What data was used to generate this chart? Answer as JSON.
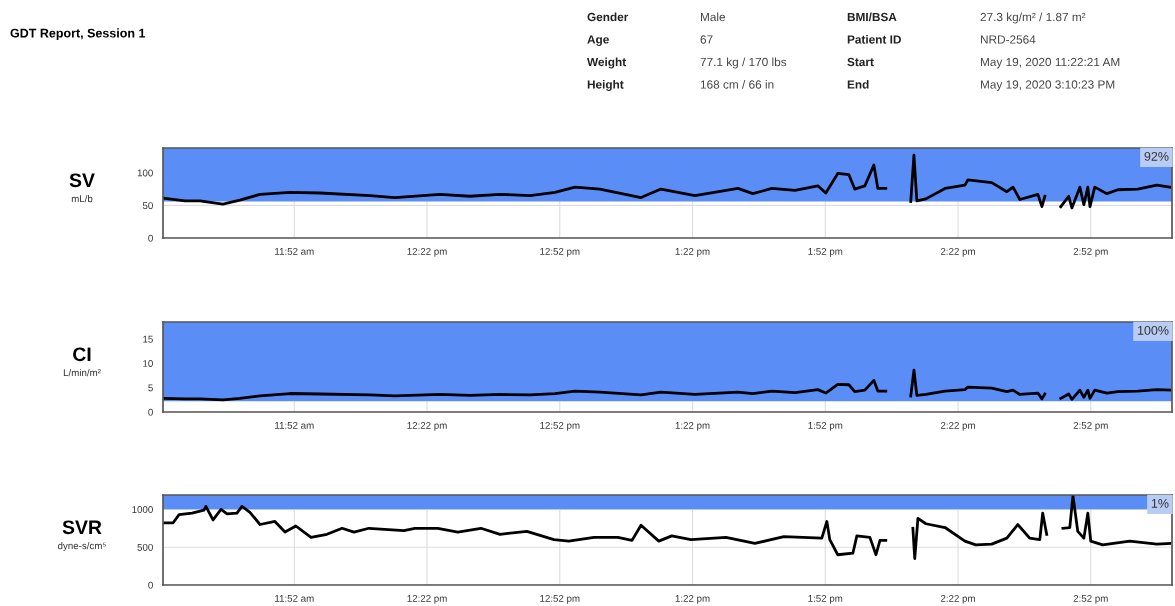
{
  "chart_data": [
    {
      "type": "other",
      "title": "GDT Report, Session 1",
      "annotations": [
        "Gender",
        "Male",
        "BMI/BSA",
        "27.3 kg/m² / 1.87 m²",
        "Age",
        "67",
        "Patient ID",
        "NRD-2564",
        "Weight",
        "77.1 kg / 170 lbs",
        "Start",
        "May 19, 2020 11:22:21 AM",
        "Height",
        "168 cm / 66 in",
        "End",
        "May 19, 2020 3:10:23 PM"
      ]
    },
    {
      "type": "line",
      "ylabel": "SV",
      "annotations": [
        "mL/b"
      ],
      "xlim": [
        11.3725,
        15.173
      ],
      "ylim": [
        0,
        138
      ],
      "yticks": [
        0,
        50,
        100
      ],
      "grid": true,
      "legend": false,
      "xticks": [
        {
          "value": 11.867,
          "label": "11:52 am"
        },
        {
          "value": 12.367,
          "label": "12:22 pm"
        },
        {
          "value": 12.867,
          "label": "12:52 pm"
        },
        {
          "value": 13.367,
          "label": "1:22 pm"
        },
        {
          "value": 13.867,
          "label": "1:52 pm"
        },
        {
          "value": 14.367,
          "label": "2:22 pm"
        },
        {
          "value": 14.867,
          "label": "2:52 pm"
        }
      ],
      "bands": [
        {
          "axis": "y",
          "from": 56,
          "to": 138,
          "label": "92%",
          "color": "#5a8ef6"
        }
      ],
      "series": [
        {
          "color": "#000000",
          "x": [
            11.373,
            11.455,
            11.512,
            11.598,
            11.662,
            11.738,
            11.851,
            11.964,
            12.152,
            12.246,
            12.416,
            12.529,
            12.642,
            12.755,
            12.849,
            12.924,
            13.018,
            13.173,
            13.248,
            13.376,
            13.538,
            13.594,
            13.666,
            13.753,
            13.839,
            13.869,
            13.914,
            13.956,
            13.978,
            14.016,
            14.05,
            14.065,
            14.095,
            14.14,
            14.189,
            14.201,
            14.212,
            14.246,
            14.318,
            14.393,
            14.404,
            14.494,
            14.551,
            14.574,
            14.6,
            14.668,
            14.683,
            14.694,
            14.725,
            14.754,
            14.784,
            14.796,
            14.826,
            14.841,
            14.856,
            14.864,
            14.882,
            14.928,
            14.969,
            15.044,
            15.116,
            15.165
          ],
          "values": [
            61,
            57,
            57,
            52,
            58,
            67,
            70,
            69,
            65,
            62,
            67,
            64,
            67,
            65,
            70,
            78,
            75,
            62,
            75,
            65,
            76,
            68,
            76,
            73,
            80,
            69,
            99,
            97,
            75,
            80,
            112,
            76,
            76,
            null,
            56,
            127,
            57,
            60,
            76,
            81,
            89,
            85,
            71,
            78,
            59,
            67,
            48,
            64,
            null,
            48,
            64,
            46,
            78,
            51,
            78,
            48,
            78,
            68,
            74,
            75,
            81,
            78
          ]
        }
      ]
    },
    {
      "type": "line",
      "ylabel": "CI",
      "annotations": [
        "L/min/m²"
      ],
      "xlim": [
        11.3725,
        15.173
      ],
      "ylim": [
        0,
        18.5
      ],
      "yticks": [
        0,
        5,
        10,
        15
      ],
      "grid": true,
      "legend": false,
      "xticks": [
        {
          "value": 11.867,
          "label": "11:52 am"
        },
        {
          "value": 12.367,
          "label": "12:22 pm"
        },
        {
          "value": 12.867,
          "label": "12:52 pm"
        },
        {
          "value": 13.367,
          "label": "1:22 pm"
        },
        {
          "value": 13.867,
          "label": "1:52 pm"
        },
        {
          "value": 14.367,
          "label": "2:22 pm"
        },
        {
          "value": 14.867,
          "label": "2:52 pm"
        }
      ],
      "bands": [
        {
          "axis": "y",
          "from": 2.2,
          "to": 18.5,
          "label": "100%",
          "color": "#5a8ef6"
        }
      ],
      "series": [
        {
          "color": "#000000",
          "x": [
            11.373,
            11.455,
            11.512,
            11.598,
            11.662,
            11.738,
            11.851,
            11.964,
            12.152,
            12.246,
            12.416,
            12.529,
            12.642,
            12.755,
            12.849,
            12.924,
            13.018,
            13.173,
            13.248,
            13.376,
            13.538,
            13.594,
            13.666,
            13.753,
            13.839,
            13.869,
            13.914,
            13.956,
            13.978,
            14.016,
            14.05,
            14.065,
            14.095,
            14.14,
            14.189,
            14.201,
            14.212,
            14.246,
            14.318,
            14.393,
            14.404,
            14.494,
            14.551,
            14.574,
            14.6,
            14.668,
            14.683,
            14.694,
            14.725,
            14.754,
            14.784,
            14.796,
            14.826,
            14.841,
            14.856,
            14.864,
            14.882,
            14.928,
            14.969,
            15.044,
            15.116,
            15.165
          ],
          "values": [
            2.8,
            2.7,
            2.7,
            2.5,
            2.8,
            3.3,
            3.8,
            3.7,
            3.5,
            3.3,
            3.6,
            3.4,
            3.6,
            3.5,
            3.8,
            4.3,
            4.1,
            3.5,
            4.1,
            3.6,
            4.1,
            3.8,
            4.3,
            4.0,
            4.6,
            3.9,
            5.7,
            5.6,
            4.2,
            4.5,
            6.5,
            4.3,
            4.3,
            null,
            3.3,
            8.6,
            3.4,
            3.6,
            4.3,
            4.6,
            5.1,
            4.9,
            4.2,
            4.5,
            3.6,
            3.9,
            2.7,
            3.7,
            null,
            2.8,
            3.7,
            2.6,
            4.5,
            3.0,
            4.5,
            2.8,
            4.5,
            3.9,
            4.2,
            4.3,
            4.6,
            4.5
          ]
        }
      ]
    },
    {
      "type": "line",
      "ylabel": "SVR",
      "annotations": [
        "dyne-s/cm⁵"
      ],
      "xlim": [
        11.3725,
        15.173
      ],
      "ylim": [
        0,
        1190
      ],
      "yticks": [
        0,
        500,
        1000
      ],
      "grid": true,
      "legend": false,
      "xticks": [
        {
          "value": 11.867,
          "label": "11:52 am"
        },
        {
          "value": 12.367,
          "label": "12:22 pm"
        },
        {
          "value": 12.867,
          "label": "12:52 pm"
        },
        {
          "value": 13.367,
          "label": "1:22 pm"
        },
        {
          "value": 13.867,
          "label": "1:52 pm"
        },
        {
          "value": 14.367,
          "label": "2:22 pm"
        },
        {
          "value": 14.867,
          "label": "2:52 pm"
        }
      ],
      "bands": [
        {
          "axis": "y",
          "from": 1000,
          "to": 1190,
          "label": "1%",
          "color": "#5a8ef6"
        }
      ],
      "series": [
        {
          "color": "#000000",
          "x": [
            11.373,
            11.41,
            11.433,
            11.482,
            11.527,
            11.534,
            11.561,
            11.591,
            11.614,
            11.651,
            11.67,
            11.7,
            11.738,
            11.794,
            11.832,
            11.873,
            11.93,
            11.99,
            12.047,
            12.092,
            12.148,
            12.28,
            12.321,
            12.408,
            12.483,
            12.57,
            12.642,
            12.743,
            12.845,
            12.901,
            12.996,
            13.086,
            13.139,
            13.173,
            13.24,
            13.289,
            13.361,
            13.493,
            13.602,
            13.711,
            13.854,
            13.873,
            13.884,
            13.914,
            13.971,
            13.986,
            14.035,
            14.058,
            14.073,
            14.095,
            14.14,
            14.197,
            14.204,
            14.216,
            14.246,
            14.318,
            14.393,
            14.434,
            14.494,
            14.551,
            14.592,
            14.637,
            14.675,
            14.686,
            14.701,
            14.725,
            14.762,
            14.788,
            14.8,
            14.818,
            14.841,
            14.856,
            14.867,
            14.912,
            15.014,
            15.116,
            15.165
          ],
          "values": [
            820,
            820,
            930,
            950,
            990,
            1040,
            860,
            1000,
            940,
            950,
            1040,
            960,
            800,
            840,
            700,
            780,
            630,
            670,
            750,
            700,
            750,
            720,
            750,
            750,
            700,
            750,
            670,
            710,
            600,
            580,
            630,
            630,
            590,
            790,
            580,
            650,
            600,
            630,
            550,
            640,
            620,
            840,
            600,
            400,
            420,
            650,
            630,
            400,
            590,
            590,
            null,
            750,
            350,
            880,
            810,
            760,
            580,
            530,
            540,
            620,
            800,
            620,
            600,
            950,
            670,
            null,
            750,
            760,
            1180,
            710,
            620,
            950,
            580,
            530,
            580,
            540,
            550
          ]
        }
      ]
    }
  ]
}
